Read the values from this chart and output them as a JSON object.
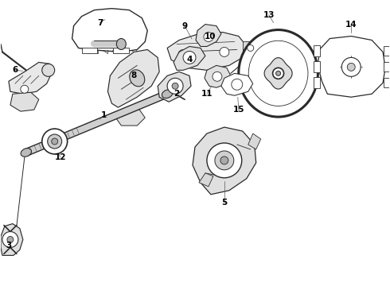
{
  "background_color": "#ffffff",
  "line_color": "#2a2a2a",
  "label_color": "#000000",
  "fig_width": 4.9,
  "fig_height": 3.6,
  "dpi": 100,
  "label_fontsize": 7.5,
  "parts": {
    "labels": [
      "1",
      "2",
      "3",
      "4",
      "5",
      "6",
      "7",
      "8",
      "9",
      "10",
      "11",
      "12",
      "13",
      "14",
      "15"
    ],
    "lx": [
      1.3,
      2.22,
      0.1,
      2.38,
      2.82,
      0.18,
      1.25,
      1.68,
      2.32,
      2.64,
      2.6,
      0.75,
      3.38,
      4.42,
      3.0
    ],
    "ly": [
      2.15,
      2.42,
      0.5,
      2.85,
      1.05,
      2.72,
      3.32,
      2.65,
      3.28,
      3.15,
      2.42,
      1.62,
      3.42,
      3.3,
      2.22
    ]
  }
}
